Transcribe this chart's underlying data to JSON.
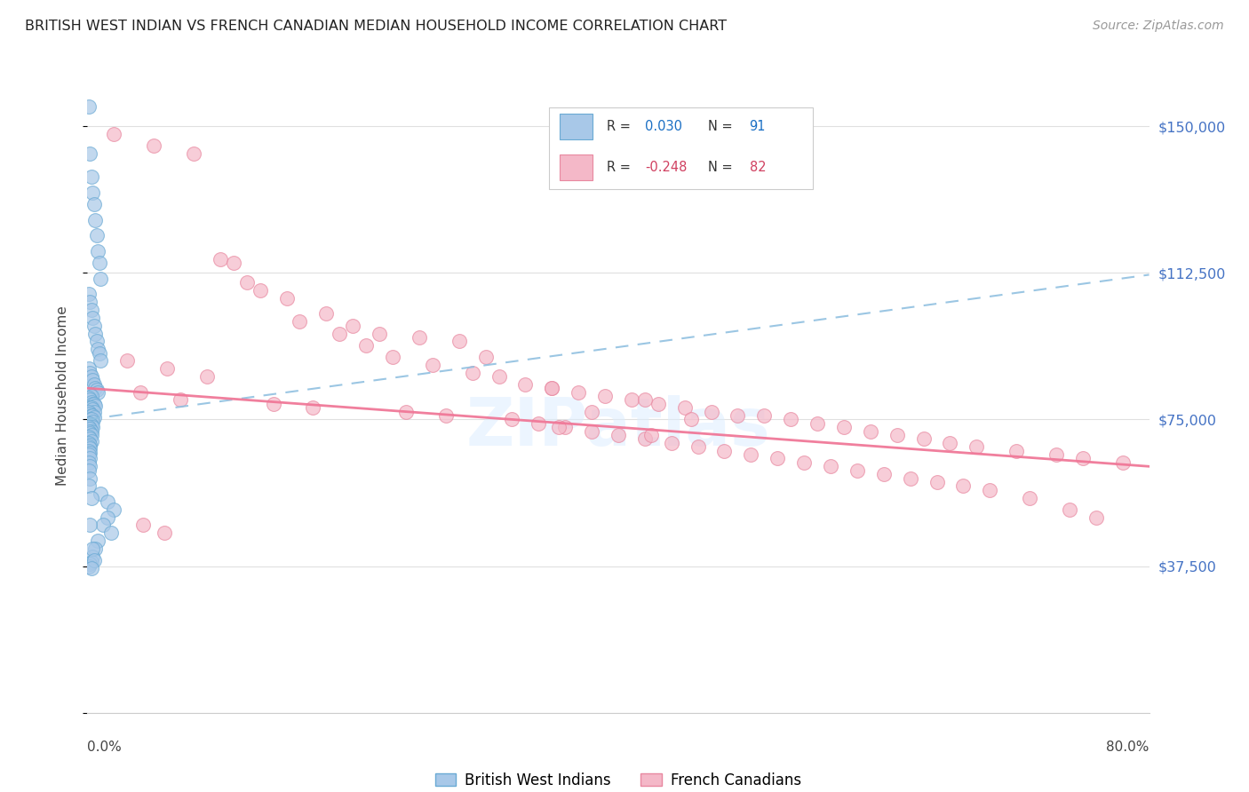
{
  "title": "BRITISH WEST INDIAN VS FRENCH CANADIAN MEDIAN HOUSEHOLD INCOME CORRELATION CHART",
  "source": "Source: ZipAtlas.com",
  "ylabel": "Median Household Income",
  "yticks": [
    0,
    37500,
    75000,
    112500,
    150000
  ],
  "ytick_labels": [
    "",
    "$37,500",
    "$75,000",
    "$112,500",
    "$150,000"
  ],
  "xmin": 0.0,
  "xmax": 0.8,
  "ymin": 0,
  "ymax": 162000,
  "watermark": "ZIPatlas",
  "blue_color": "#a8c8e8",
  "blue_edge": "#6aaad4",
  "pink_color": "#f4b8c8",
  "pink_edge": "#e888a0",
  "blue_line_color": "#90c0e0",
  "pink_line_color": "#f07898",
  "grid_color": "#e0e0e0",
  "title_color": "#222222",
  "source_color": "#999999",
  "right_tick_color": "#4472c4",
  "bwi_R": 0.03,
  "bwi_N": 91,
  "fc_R": -0.248,
  "fc_N": 82,
  "bwi_x": [
    0.001,
    0.002,
    0.003,
    0.004,
    0.005,
    0.006,
    0.007,
    0.008,
    0.009,
    0.01,
    0.001,
    0.002,
    0.003,
    0.004,
    0.005,
    0.006,
    0.007,
    0.008,
    0.009,
    0.01,
    0.001,
    0.002,
    0.003,
    0.004,
    0.005,
    0.006,
    0.007,
    0.008,
    0.002,
    0.003,
    0.001,
    0.002,
    0.003,
    0.004,
    0.005,
    0.006,
    0.002,
    0.003,
    0.004,
    0.005,
    0.001,
    0.002,
    0.003,
    0.004,
    0.005,
    0.002,
    0.003,
    0.004,
    0.001,
    0.002,
    0.003,
    0.004,
    0.001,
    0.002,
    0.003,
    0.001,
    0.002,
    0.003,
    0.001,
    0.002,
    0.003,
    0.001,
    0.002,
    0.001,
    0.002,
    0.001,
    0.002,
    0.001,
    0.002,
    0.001,
    0.002,
    0.001,
    0.002,
    0.001,
    0.01,
    0.015,
    0.02,
    0.015,
    0.012,
    0.018,
    0.008,
    0.006,
    0.004,
    0.003,
    0.002,
    0.001,
    0.003,
    0.002,
    0.004,
    0.005,
    0.003
  ],
  "bwi_y": [
    155000,
    143000,
    137000,
    133000,
    130000,
    126000,
    122000,
    118000,
    115000,
    111000,
    107000,
    105000,
    103000,
    101000,
    99000,
    97000,
    95000,
    93000,
    92000,
    90000,
    88000,
    87000,
    86000,
    85000,
    84000,
    83000,
    82500,
    82000,
    81500,
    81000,
    80500,
    80000,
    79500,
    79000,
    79000,
    78500,
    78000,
    78000,
    77500,
    77000,
    77000,
    76500,
    76000,
    76000,
    75500,
    75000,
    75000,
    74500,
    74000,
    74000,
    73500,
    73000,
    73000,
    72500,
    72000,
    72000,
    71500,
    71000,
    70500,
    70000,
    69500,
    69000,
    68500,
    68000,
    67500,
    67000,
    66500,
    66000,
    65000,
    64000,
    63000,
    62000,
    60000,
    58000,
    56000,
    54000,
    52000,
    50000,
    48000,
    46000,
    44000,
    42000,
    40000,
    38500,
    38000,
    37500,
    55000,
    48000,
    42000,
    39000,
    37000
  ],
  "fc_x": [
    0.02,
    0.05,
    0.08,
    0.1,
    0.12,
    0.15,
    0.18,
    0.2,
    0.22,
    0.25,
    0.28,
    0.3,
    0.03,
    0.06,
    0.09,
    0.11,
    0.13,
    0.16,
    0.19,
    0.21,
    0.23,
    0.26,
    0.29,
    0.31,
    0.33,
    0.35,
    0.37,
    0.39,
    0.41,
    0.43,
    0.45,
    0.47,
    0.49,
    0.51,
    0.53,
    0.55,
    0.57,
    0.59,
    0.61,
    0.63,
    0.65,
    0.67,
    0.7,
    0.73,
    0.75,
    0.78,
    0.04,
    0.07,
    0.14,
    0.17,
    0.24,
    0.27,
    0.32,
    0.34,
    0.36,
    0.38,
    0.4,
    0.42,
    0.44,
    0.46,
    0.48,
    0.5,
    0.52,
    0.54,
    0.56,
    0.58,
    0.6,
    0.62,
    0.64,
    0.66,
    0.68,
    0.71,
    0.74,
    0.76,
    0.35,
    0.42,
    0.38,
    0.455,
    0.355,
    0.425,
    0.042,
    0.058
  ],
  "fc_y": [
    148000,
    145000,
    143000,
    116000,
    110000,
    106000,
    102000,
    99000,
    97000,
    96000,
    95000,
    91000,
    90000,
    88000,
    86000,
    115000,
    108000,
    100000,
    97000,
    94000,
    91000,
    89000,
    87000,
    86000,
    84000,
    83000,
    82000,
    81000,
    80000,
    79000,
    78000,
    77000,
    76000,
    76000,
    75000,
    74000,
    73000,
    72000,
    71000,
    70000,
    69000,
    68000,
    67000,
    66000,
    65000,
    64000,
    82000,
    80000,
    79000,
    78000,
    77000,
    76000,
    75000,
    74000,
    73000,
    72000,
    71000,
    70000,
    69000,
    68000,
    67000,
    66000,
    65000,
    64000,
    63000,
    62000,
    61000,
    60000,
    59000,
    58000,
    57000,
    55000,
    52000,
    50000,
    83000,
    80000,
    77000,
    75000,
    73000,
    71000,
    48000,
    46000
  ],
  "bwi_trend_x0": 0.0,
  "bwi_trend_x1": 0.8,
  "bwi_trend_y0": 75000,
  "bwi_trend_y1": 112000,
  "fc_trend_x0": 0.0,
  "fc_trend_x1": 0.8,
  "fc_trend_y0": 83000,
  "fc_trend_y1": 63000
}
